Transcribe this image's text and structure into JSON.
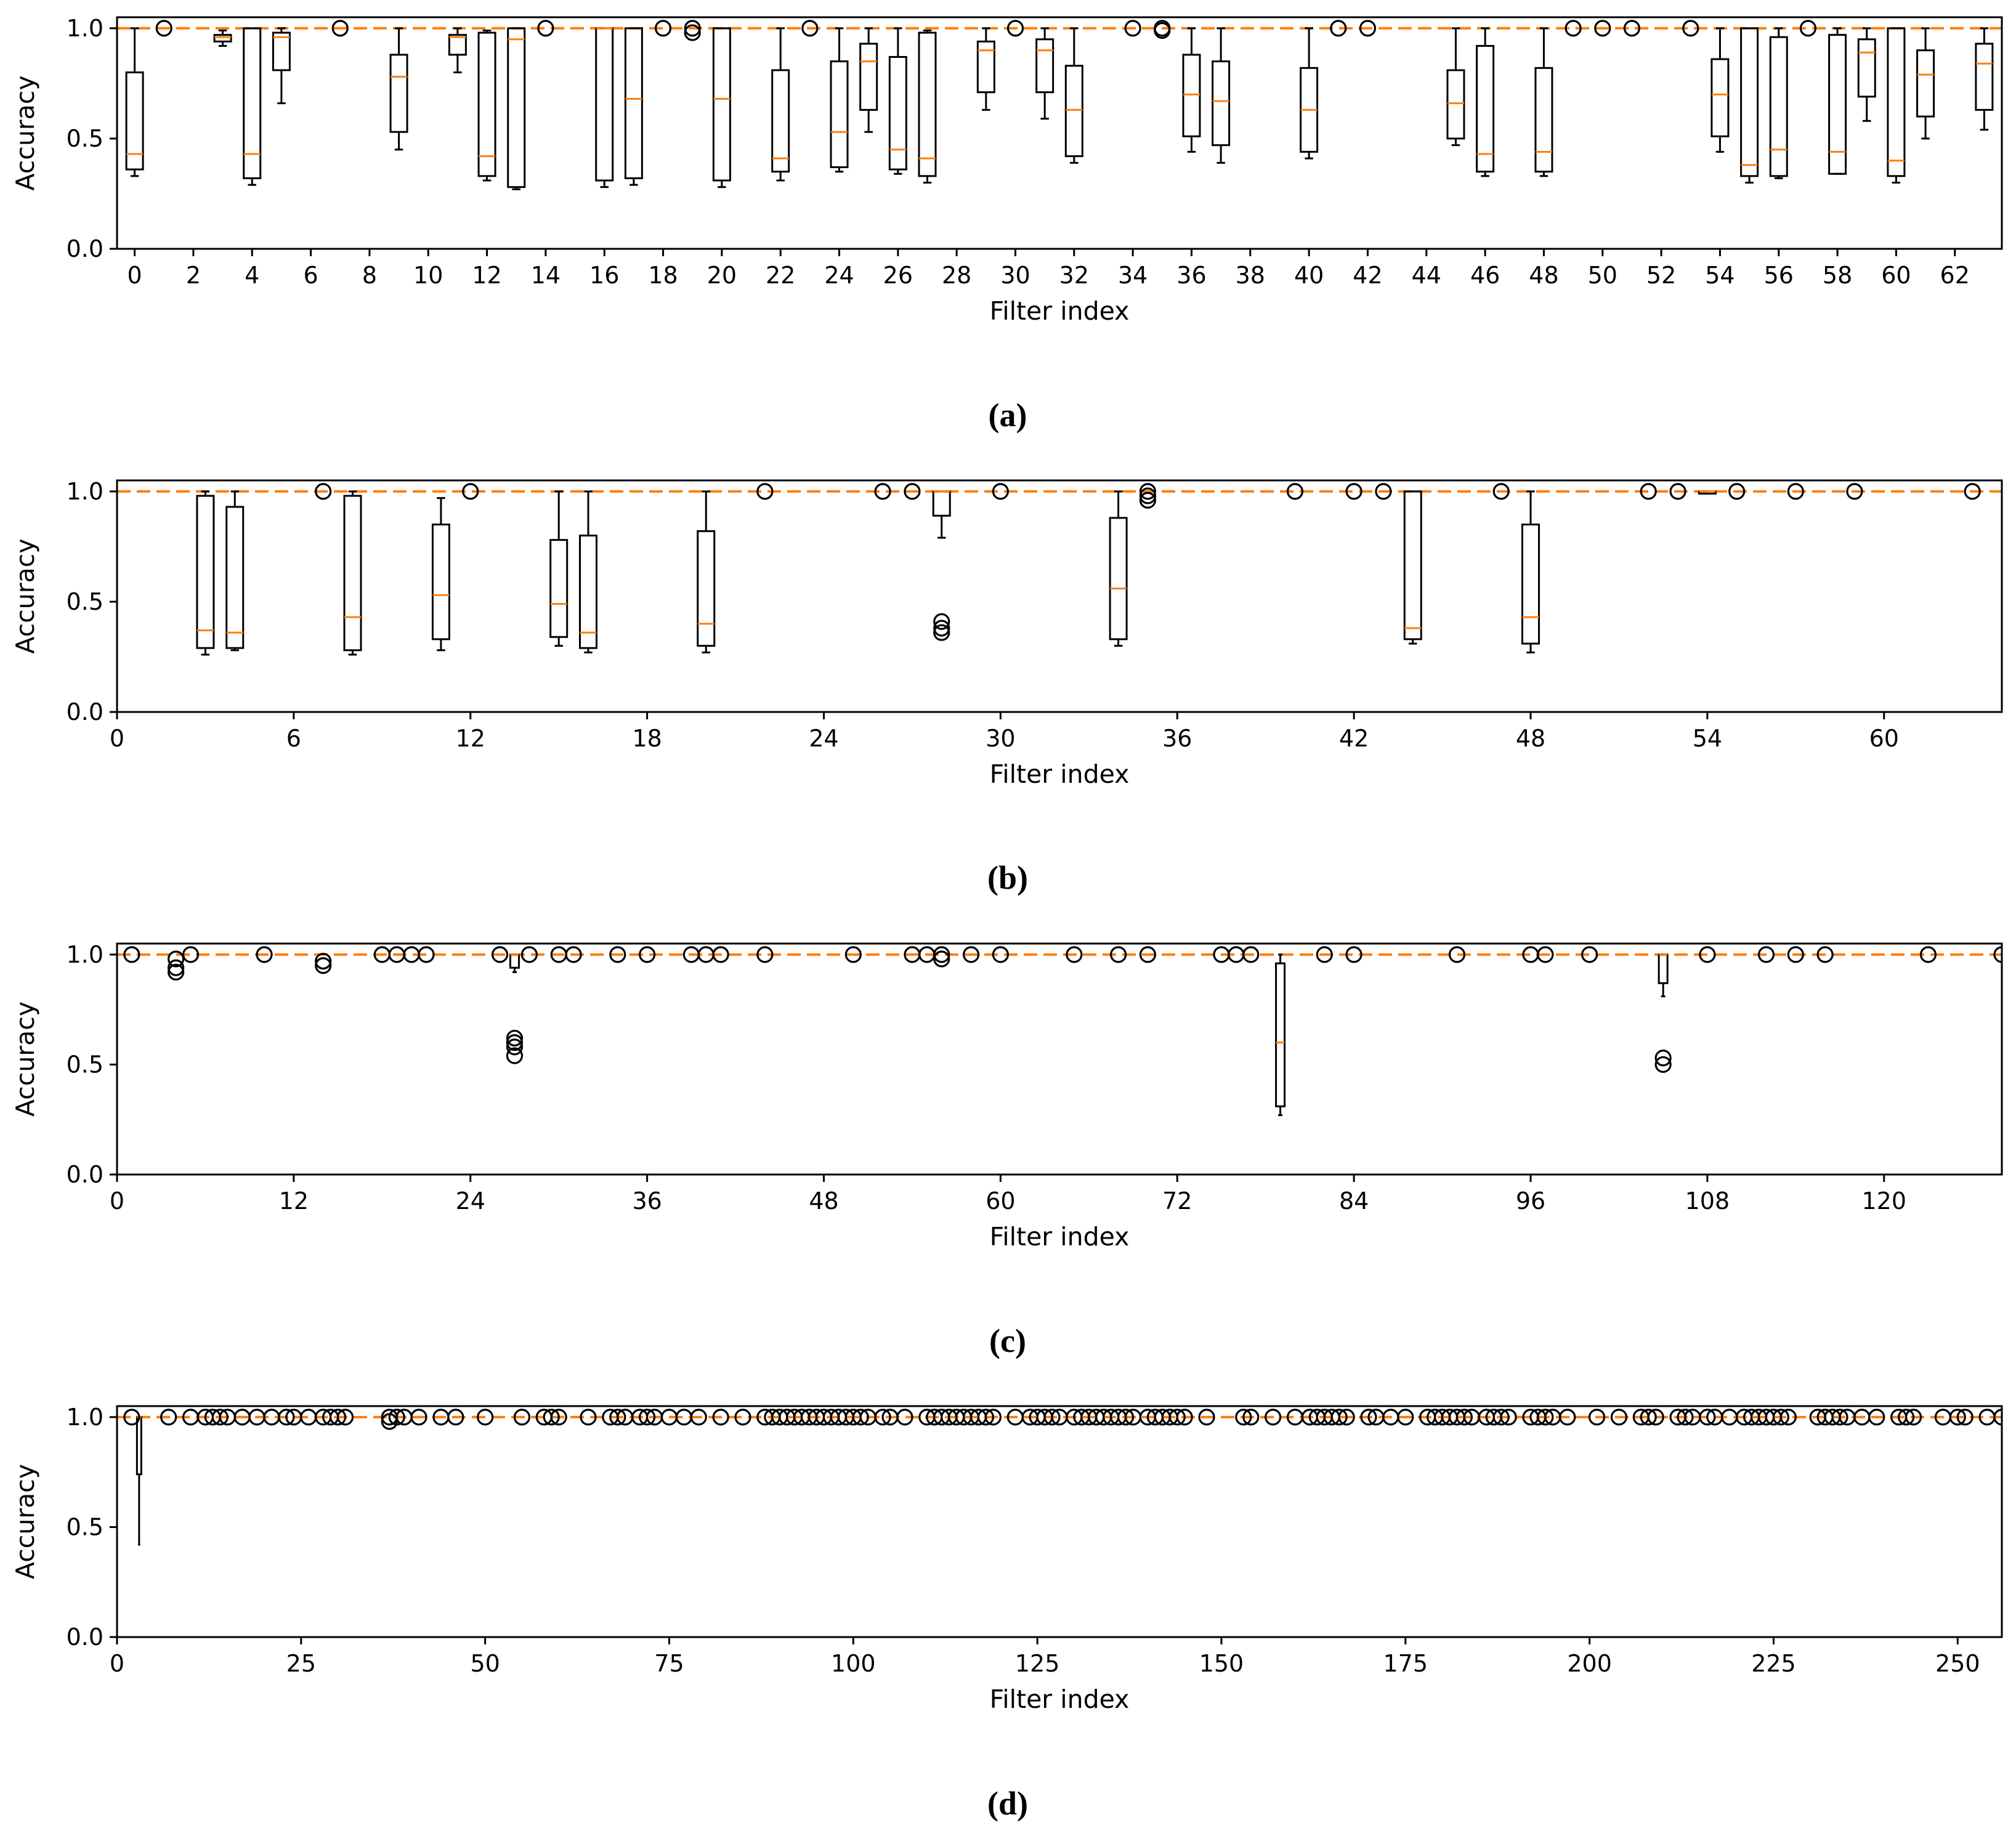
{
  "figure": {
    "panel_ids": [
      "a",
      "b",
      "c",
      "d"
    ]
  },
  "colors": {
    "median": "#ff7f0e",
    "reference": "#ff7f0e",
    "box": "#000000"
  },
  "chart_data": [
    {
      "type": "box",
      "panel_label": "(a)",
      "xlabel": "Filter index",
      "ylabel": "Accuracy",
      "xlim": [
        -0.6,
        63.6
      ],
      "ylim": [
        0,
        1.05
      ],
      "xticks": [
        0,
        2,
        4,
        6,
        8,
        10,
        12,
        14,
        16,
        18,
        20,
        22,
        24,
        26,
        28,
        30,
        32,
        34,
        36,
        38,
        40,
        42,
        44,
        46,
        48,
        50,
        52,
        54,
        56,
        58,
        60,
        62
      ],
      "xtick_labels": [
        "0",
        "2",
        "4",
        "6",
        "8",
        "10",
        "12",
        "14",
        "16",
        "18",
        "20",
        "22",
        "24",
        "26",
        "28",
        "30",
        "32",
        "34",
        "36",
        "38",
        "40",
        "42",
        "44",
        "46",
        "48",
        "50",
        "52",
        "54",
        "56",
        "58",
        "60",
        "62"
      ],
      "yticks": [
        0.0,
        0.5,
        1.0
      ],
      "ytick_labels": [
        "0.0",
        "0.5",
        "1.0"
      ],
      "reference_line": 1.0,
      "boxes": [
        {
          "x": 0,
          "wl": 0.33,
          "q1": 0.36,
          "med": 0.43,
          "q3": 0.8,
          "wh": 1.0
        },
        {
          "x": 3,
          "wl": 0.92,
          "q1": 0.94,
          "med": 0.96,
          "q3": 0.97,
          "wh": 0.99
        },
        {
          "x": 4,
          "wl": 0.29,
          "q1": 0.32,
          "med": 0.43,
          "q3": 1.0,
          "wh": 1.0
        },
        {
          "x": 5,
          "wl": 0.66,
          "q1": 0.81,
          "med": 0.96,
          "q3": 0.98,
          "wh": 1.0
        },
        {
          "x": 9,
          "wl": 0.45,
          "q1": 0.53,
          "med": 0.78,
          "q3": 0.88,
          "wh": 1.0
        },
        {
          "x": 11,
          "wl": 0.8,
          "q1": 0.88,
          "med": 0.96,
          "q3": 0.97,
          "wh": 1.0
        },
        {
          "x": 12,
          "wl": 0.31,
          "q1": 0.33,
          "med": 0.42,
          "q3": 0.98,
          "wh": 0.99
        },
        {
          "x": 13,
          "wl": 0.27,
          "q1": 0.28,
          "med": 0.95,
          "q3": 1.0,
          "wh": 1.0
        },
        {
          "x": 16,
          "wl": 0.28,
          "q1": 0.31,
          "med": 1.0,
          "q3": 1.0,
          "wh": 1.0
        },
        {
          "x": 17,
          "wl": 0.29,
          "q1": 0.32,
          "med": 0.68,
          "q3": 1.0,
          "wh": 1.0
        },
        {
          "x": 20,
          "wl": 0.28,
          "q1": 0.31,
          "med": 0.68,
          "q3": 1.0,
          "wh": 1.0
        },
        {
          "x": 22,
          "wl": 0.31,
          "q1": 0.35,
          "med": 0.41,
          "q3": 0.81,
          "wh": 1.0
        },
        {
          "x": 24,
          "wl": 0.35,
          "q1": 0.37,
          "med": 0.53,
          "q3": 0.85,
          "wh": 1.0
        },
        {
          "x": 25,
          "wl": 0.53,
          "q1": 0.63,
          "med": 0.85,
          "q3": 0.93,
          "wh": 1.0
        },
        {
          "x": 26,
          "wl": 0.34,
          "q1": 0.36,
          "med": 0.45,
          "q3": 0.87,
          "wh": 1.0
        },
        {
          "x": 27,
          "wl": 0.3,
          "q1": 0.33,
          "med": 0.41,
          "q3": 0.98,
          "wh": 0.99
        },
        {
          "x": 29,
          "wl": 0.63,
          "q1": 0.71,
          "med": 0.9,
          "q3": 0.94,
          "wh": 1.0
        },
        {
          "x": 31,
          "wl": 0.59,
          "q1": 0.71,
          "med": 0.9,
          "q3": 0.95,
          "wh": 1.0
        },
        {
          "x": 32,
          "wl": 0.39,
          "q1": 0.42,
          "med": 0.63,
          "q3": 0.83,
          "wh": 1.0
        },
        {
          "x": 36,
          "wl": 0.44,
          "q1": 0.51,
          "med": 0.7,
          "q3": 0.88,
          "wh": 1.0
        },
        {
          "x": 37,
          "wl": 0.39,
          "q1": 0.47,
          "med": 0.67,
          "q3": 0.85,
          "wh": 1.0
        },
        {
          "x": 40,
          "wl": 0.41,
          "q1": 0.44,
          "med": 0.63,
          "q3": 0.82,
          "wh": 1.0
        },
        {
          "x": 45,
          "wl": 0.47,
          "q1": 0.5,
          "med": 0.66,
          "q3": 0.81,
          "wh": 1.0
        },
        {
          "x": 46,
          "wl": 0.33,
          "q1": 0.35,
          "med": 0.43,
          "q3": 0.92,
          "wh": 1.0
        },
        {
          "x": 48,
          "wl": 0.33,
          "q1": 0.35,
          "med": 0.44,
          "q3": 0.82,
          "wh": 1.0
        },
        {
          "x": 54,
          "wl": 0.44,
          "q1": 0.51,
          "med": 0.7,
          "q3": 0.86,
          "wh": 1.0
        },
        {
          "x": 55,
          "wl": 0.3,
          "q1": 0.33,
          "med": 0.38,
          "q3": 1.0,
          "wh": 1.0
        },
        {
          "x": 56,
          "wl": 0.32,
          "q1": 0.33,
          "med": 0.45,
          "q3": 0.96,
          "wh": 1.0
        },
        {
          "x": 58,
          "wl": 0.34,
          "q1": 0.34,
          "med": 0.44,
          "q3": 0.97,
          "wh": 1.0
        },
        {
          "x": 59,
          "wl": 0.58,
          "q1": 0.69,
          "med": 0.89,
          "q3": 0.95,
          "wh": 1.0
        },
        {
          "x": 60,
          "wl": 0.3,
          "q1": 0.33,
          "med": 0.4,
          "q3": 1.0,
          "wh": 1.0
        },
        {
          "x": 61,
          "wl": 0.5,
          "q1": 0.6,
          "med": 0.79,
          "q3": 0.9,
          "wh": 1.0
        },
        {
          "x": 63,
          "wl": 0.54,
          "q1": 0.63,
          "med": 0.84,
          "q3": 0.93,
          "wh": 1.0
        }
      ],
      "outliers": [
        {
          "x": 1,
          "y": 1.0
        },
        {
          "x": 7,
          "y": 1.0
        },
        {
          "x": 14,
          "y": 1.0
        },
        {
          "x": 18,
          "y": 1.0
        },
        {
          "x": 19,
          "y": 1.0
        },
        {
          "x": 19,
          "y": 0.98
        },
        {
          "x": 23,
          "y": 1.0
        },
        {
          "x": 30,
          "y": 1.0
        },
        {
          "x": 34,
          "y": 1.0
        },
        {
          "x": 35,
          "y": 1.0
        },
        {
          "x": 35,
          "y": 0.99
        },
        {
          "x": 41,
          "y": 1.0
        },
        {
          "x": 42,
          "y": 1.0
        },
        {
          "x": 49,
          "y": 1.0
        },
        {
          "x": 50,
          "y": 1.0
        },
        {
          "x": 51,
          "y": 1.0
        },
        {
          "x": 53,
          "y": 1.0
        },
        {
          "x": 57,
          "y": 1.0
        }
      ]
    },
    {
      "type": "box",
      "panel_label": "(b)",
      "xlabel": "Filter index",
      "ylabel": "Accuracy",
      "xlim": [
        0,
        64
      ],
      "ylim": [
        0,
        1.05
      ],
      "xticks": [
        0,
        6,
        12,
        18,
        24,
        30,
        36,
        42,
        48,
        54,
        60
      ],
      "xtick_labels": [
        "0",
        "6",
        "12",
        "18",
        "24",
        "30",
        "36",
        "42",
        "48",
        "54",
        "60"
      ],
      "yticks": [
        0.0,
        0.5,
        1.0
      ],
      "ytick_labels": [
        "0.0",
        "0.5",
        "1.0"
      ],
      "reference_line": 1.0,
      "boxes": [
        {
          "x": 3,
          "wl": 0.26,
          "q1": 0.29,
          "med": 0.37,
          "q3": 0.98,
          "wh": 1.0
        },
        {
          "x": 4,
          "wl": 0.28,
          "q1": 0.29,
          "med": 0.36,
          "q3": 0.93,
          "wh": 1.0
        },
        {
          "x": 8,
          "wl": 0.26,
          "q1": 0.28,
          "med": 0.43,
          "q3": 0.98,
          "wh": 1.0
        },
        {
          "x": 11,
          "wl": 0.28,
          "q1": 0.33,
          "med": 0.53,
          "q3": 0.85,
          "wh": 0.97
        },
        {
          "x": 15,
          "wl": 0.3,
          "q1": 0.34,
          "med": 0.49,
          "q3": 0.78,
          "wh": 1.0
        },
        {
          "x": 16,
          "wl": 0.27,
          "q1": 0.29,
          "med": 0.36,
          "q3": 0.8,
          "wh": 1.0
        },
        {
          "x": 20,
          "wl": 0.27,
          "q1": 0.3,
          "med": 0.4,
          "q3": 0.82,
          "wh": 1.0
        },
        {
          "x": 28,
          "wl": 0.79,
          "q1": 0.89,
          "med": 1.0,
          "q3": 1.0,
          "wh": 1.0
        },
        {
          "x": 34,
          "wl": 0.3,
          "q1": 0.33,
          "med": 0.56,
          "q3": 0.88,
          "wh": 1.0
        },
        {
          "x": 44,
          "wl": 0.31,
          "q1": 0.33,
          "med": 0.38,
          "q3": 1.0,
          "wh": 1.0
        },
        {
          "x": 48,
          "wl": 0.27,
          "q1": 0.31,
          "med": 0.43,
          "q3": 0.85,
          "wh": 1.0
        },
        {
          "x": 54,
          "wl": 0.99,
          "q1": 0.99,
          "med": 1.0,
          "q3": 1.0,
          "wh": 1.0
        }
      ],
      "outliers": [
        {
          "x": 7,
          "y": 1.0
        },
        {
          "x": 12,
          "y": 1.0
        },
        {
          "x": 22,
          "y": 1.0
        },
        {
          "x": 26,
          "y": 1.0
        },
        {
          "x": 27,
          "y": 1.0
        },
        {
          "x": 28,
          "y": 0.41
        },
        {
          "x": 28,
          "y": 0.38
        },
        {
          "x": 28,
          "y": 0.36
        },
        {
          "x": 30,
          "y": 1.0
        },
        {
          "x": 35,
          "y": 1.0
        },
        {
          "x": 35,
          "y": 0.98
        },
        {
          "x": 35,
          "y": 0.96
        },
        {
          "x": 40,
          "y": 1.0
        },
        {
          "x": 42,
          "y": 1.0
        },
        {
          "x": 43,
          "y": 1.0
        },
        {
          "x": 47,
          "y": 1.0
        },
        {
          "x": 52,
          "y": 1.0
        },
        {
          "x": 53,
          "y": 1.0
        },
        {
          "x": 55,
          "y": 1.0
        },
        {
          "x": 57,
          "y": 1.0
        },
        {
          "x": 59,
          "y": 1.0
        },
        {
          "x": 63,
          "y": 1.0
        }
      ]
    },
    {
      "type": "box",
      "panel_label": "(c)",
      "xlabel": "Filter index",
      "ylabel": "Accuracy",
      "xlim": [
        0,
        128
      ],
      "ylim": [
        0,
        1.05
      ],
      "xticks": [
        0,
        12,
        24,
        36,
        48,
        60,
        72,
        84,
        96,
        108,
        120
      ],
      "xtick_labels": [
        "0",
        "12",
        "24",
        "36",
        "48",
        "60",
        "72",
        "84",
        "96",
        "108",
        "120"
      ],
      "yticks": [
        0.0,
        0.5,
        1.0
      ],
      "ytick_labels": [
        "0.0",
        "0.5",
        "1.0"
      ],
      "reference_line": 1.0,
      "boxes": [
        {
          "x": 27,
          "wl": 0.92,
          "q1": 0.94,
          "med": 1.0,
          "q3": 1.0,
          "wh": 1.0
        },
        {
          "x": 79,
          "wl": 0.27,
          "q1": 0.31,
          "med": 0.6,
          "q3": 0.96,
          "wh": 1.0
        },
        {
          "x": 105,
          "wl": 0.81,
          "q1": 0.87,
          "med": 1.0,
          "q3": 1.0,
          "wh": 1.0
        }
      ],
      "outliers": [
        {
          "x": 1,
          "y": 1.0
        },
        {
          "x": 4,
          "y": 0.98
        },
        {
          "x": 4,
          "y": 0.94
        },
        {
          "x": 4,
          "y": 0.92
        },
        {
          "x": 5,
          "y": 1.0
        },
        {
          "x": 10,
          "y": 1.0
        },
        {
          "x": 14,
          "y": 0.97
        },
        {
          "x": 14,
          "y": 0.95
        },
        {
          "x": 18,
          "y": 1.0
        },
        {
          "x": 19,
          "y": 1.0
        },
        {
          "x": 20,
          "y": 1.0
        },
        {
          "x": 21,
          "y": 1.0
        },
        {
          "x": 26,
          "y": 1.0
        },
        {
          "x": 27,
          "y": 0.62
        },
        {
          "x": 27,
          "y": 0.6
        },
        {
          "x": 27,
          "y": 0.58
        },
        {
          "x": 27,
          "y": 0.54
        },
        {
          "x": 28,
          "y": 1.0
        },
        {
          "x": 30,
          "y": 1.0
        },
        {
          "x": 31,
          "y": 1.0
        },
        {
          "x": 34,
          "y": 1.0
        },
        {
          "x": 36,
          "y": 1.0
        },
        {
          "x": 39,
          "y": 1.0
        },
        {
          "x": 40,
          "y": 1.0
        },
        {
          "x": 41,
          "y": 1.0
        },
        {
          "x": 44,
          "y": 1.0
        },
        {
          "x": 50,
          "y": 1.0
        },
        {
          "x": 54,
          "y": 1.0
        },
        {
          "x": 55,
          "y": 1.0
        },
        {
          "x": 56,
          "y": 1.0
        },
        {
          "x": 56,
          "y": 0.98
        },
        {
          "x": 58,
          "y": 1.0
        },
        {
          "x": 60,
          "y": 1.0
        },
        {
          "x": 65,
          "y": 1.0
        },
        {
          "x": 68,
          "y": 1.0
        },
        {
          "x": 70,
          "y": 1.0
        },
        {
          "x": 75,
          "y": 1.0
        },
        {
          "x": 76,
          "y": 1.0
        },
        {
          "x": 77,
          "y": 1.0
        },
        {
          "x": 82,
          "y": 1.0
        },
        {
          "x": 84,
          "y": 1.0
        },
        {
          "x": 91,
          "y": 1.0
        },
        {
          "x": 96,
          "y": 1.0
        },
        {
          "x": 97,
          "y": 1.0
        },
        {
          "x": 100,
          "y": 1.0
        },
        {
          "x": 105,
          "y": 0.53
        },
        {
          "x": 105,
          "y": 0.5
        },
        {
          "x": 108,
          "y": 1.0
        },
        {
          "x": 112,
          "y": 1.0
        },
        {
          "x": 114,
          "y": 1.0
        },
        {
          "x": 116,
          "y": 1.0
        },
        {
          "x": 123,
          "y": 1.0
        },
        {
          "x": 128,
          "y": 1.0
        }
      ]
    },
    {
      "type": "box",
      "panel_label": "(d)",
      "xlabel": "Filter index",
      "ylabel": "Accuracy",
      "xlim": [
        0,
        256
      ],
      "ylim": [
        0,
        1.05
      ],
      "xticks": [
        0,
        25,
        50,
        75,
        100,
        125,
        150,
        175,
        200,
        225,
        250
      ],
      "xtick_labels": [
        "0",
        "25",
        "50",
        "75",
        "100",
        "125",
        "150",
        "175",
        "200",
        "225",
        "250"
      ],
      "yticks": [
        0.0,
        0.5,
        1.0
      ],
      "ytick_labels": [
        "0.0",
        "0.5",
        "1.0"
      ],
      "reference_line": 1.0,
      "boxes": [
        {
          "x": 3,
          "wl": 0.42,
          "q1": 0.74,
          "med": 1.0,
          "q3": 1.0,
          "wh": 1.0
        }
      ],
      "outlier_y": 1.0,
      "outlier_x": [
        2,
        7,
        10,
        12,
        13,
        14,
        15,
        17,
        19,
        21,
        23,
        24,
        26,
        28,
        29,
        30,
        31,
        37,
        38,
        39,
        41,
        44,
        46,
        50,
        55,
        58,
        59,
        60,
        64,
        67,
        68,
        69,
        71,
        72,
        73,
        75,
        77,
        79,
        82,
        85,
        88,
        89,
        90,
        91,
        92,
        93,
        94,
        95,
        96,
        97,
        98,
        99,
        100,
        101,
        102,
        104,
        105,
        107,
        110,
        111,
        112,
        113,
        114,
        115,
        116,
        117,
        118,
        119,
        122,
        124,
        125,
        126,
        127,
        128,
        130,
        131,
        132,
        133,
        134,
        135,
        136,
        137,
        138,
        140,
        141,
        142,
        143,
        144,
        145,
        148,
        153,
        154,
        157,
        160,
        162,
        163,
        164,
        165,
        166,
        167,
        170,
        171,
        173,
        175,
        178,
        179,
        180,
        181,
        182,
        183,
        184,
        186,
        187,
        188,
        189,
        192,
        193,
        194,
        195,
        197,
        201,
        204,
        207,
        208,
        209,
        212,
        213,
        214,
        216,
        217,
        219,
        221,
        222,
        223,
        224,
        225,
        226,
        227,
        231,
        232,
        233,
        234,
        235,
        237,
        239,
        242,
        243,
        244,
        248,
        250,
        251,
        254,
        256
      ],
      "outlier_extra": [
        {
          "x": 37,
          "y": 0.98
        }
      ]
    }
  ]
}
